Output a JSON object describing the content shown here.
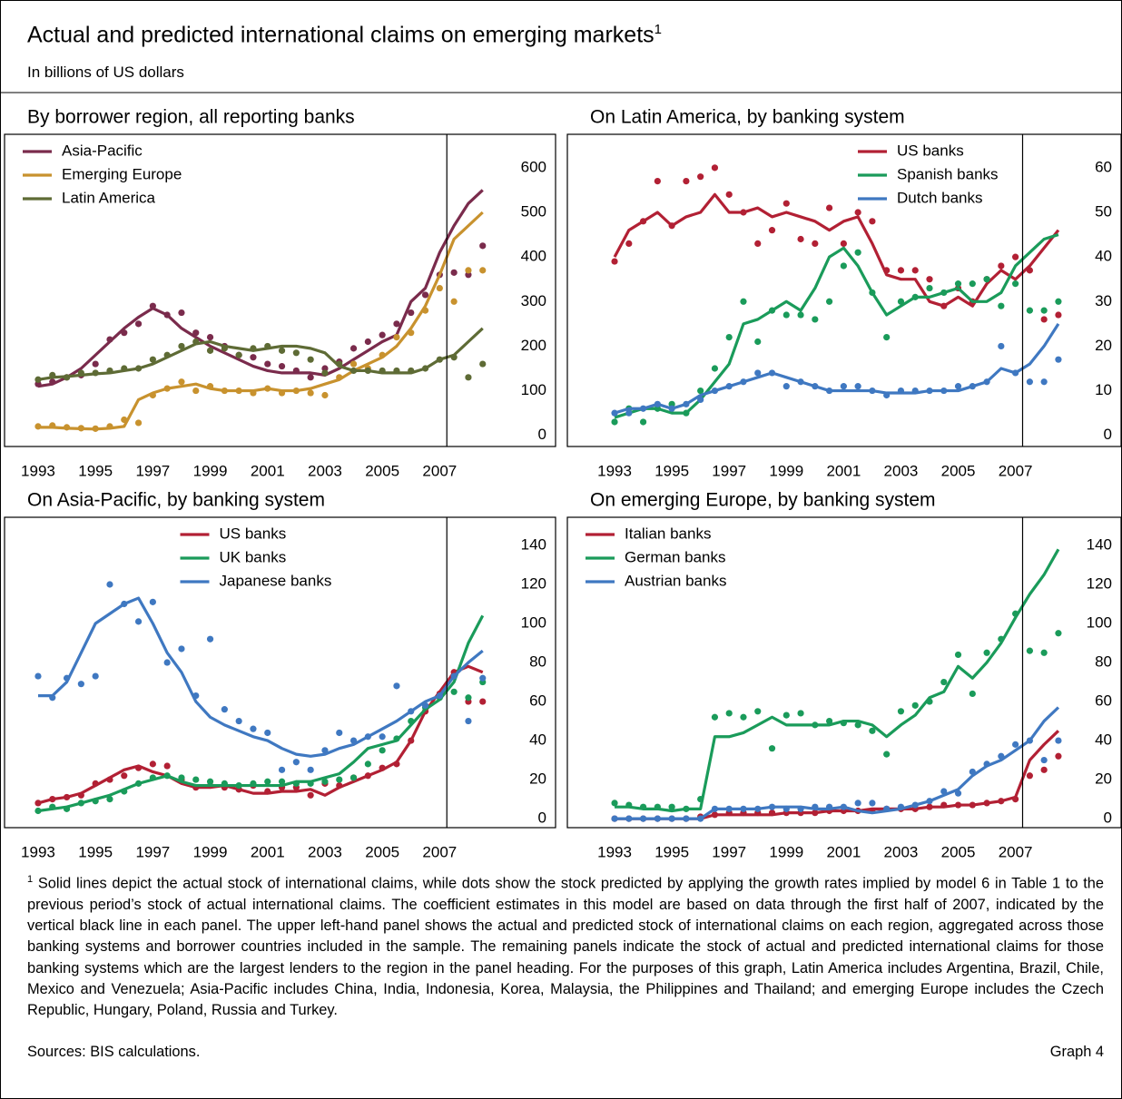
{
  "title": "Actual and predicted international claims on emerging markets",
  "title_note": "1",
  "subtitle": "In billions of US dollars",
  "chart_data": [
    {
      "type": "line",
      "title": "By borrower region, all reporting banks",
      "legend": "upper left",
      "xlim": [
        1991.83,
        2011.04
      ],
      "xticks": [
        1993,
        1995,
        1997,
        1999,
        2001,
        2003,
        2005,
        2007
      ],
      "ylim": [
        -25,
        675
      ],
      "yticks": [
        0,
        100,
        200,
        300,
        400,
        500,
        600
      ],
      "vline": 2007.25,
      "x": [
        1993,
        1993.5,
        1994,
        1994.5,
        1995,
        1995.5,
        1996,
        1996.5,
        1997,
        1997.5,
        1998,
        1998.5,
        1999,
        1999.5,
        2000,
        2000.5,
        2001,
        2001.5,
        2002,
        2002.5,
        2003,
        2003.5,
        2004,
        2004.5,
        2005,
        2005.5,
        2006,
        2006.5,
        2007,
        2007.5,
        2008,
        2008.5
      ],
      "series": [
        {
          "name": "Asia-Pacific",
          "color": "#7a2b4c",
          "values": [
            110,
            115,
            130,
            150,
            180,
            210,
            240,
            265,
            285,
            270,
            240,
            220,
            200,
            185,
            170,
            155,
            145,
            140,
            140,
            140,
            135,
            150,
            170,
            190,
            210,
            225,
            300,
            330,
            410,
            470,
            520,
            550
          ],
          "predicted": [
            115,
            120,
            130,
            135,
            160,
            215,
            230,
            250,
            290,
            270,
            275,
            230,
            220,
            200,
            180,
            175,
            160,
            155,
            145,
            130,
            150,
            165,
            195,
            210,
            225,
            250,
            275,
            315,
            360,
            365,
            360,
            425
          ]
        },
        {
          "name": "Emerging Europe",
          "color": "#c8922e",
          "values": [
            18,
            18,
            16,
            15,
            14,
            16,
            20,
            80,
            95,
            105,
            110,
            115,
            105,
            100,
            100,
            100,
            105,
            100,
            100,
            105,
            115,
            125,
            145,
            160,
            175,
            200,
            240,
            290,
            360,
            440,
            470,
            500
          ],
          "predicted": [
            20,
            22,
            18,
            16,
            15,
            20,
            35,
            28,
            90,
            105,
            120,
            100,
            110,
            100,
            100,
            95,
            105,
            95,
            100,
            95,
            90,
            130,
            160,
            150,
            180,
            220,
            230,
            280,
            330,
            300,
            370,
            370
          ]
        },
        {
          "name": "Latin America",
          "color": "#5e6b35",
          "values": [
            125,
            130,
            132,
            135,
            138,
            140,
            145,
            150,
            160,
            175,
            190,
            205,
            210,
            200,
            195,
            190,
            195,
            200,
            200,
            195,
            185,
            155,
            145,
            145,
            140,
            140,
            140,
            150,
            170,
            180,
            210,
            240
          ],
          "predicted": [
            125,
            135,
            130,
            140,
            140,
            145,
            150,
            150,
            170,
            180,
            200,
            210,
            190,
            195,
            180,
            195,
            200,
            190,
            185,
            170,
            140,
            160,
            145,
            145,
            145,
            145,
            145,
            150,
            170,
            175,
            130,
            160
          ]
        }
      ]
    },
    {
      "type": "line",
      "title": "On Latin America, by banking system",
      "legend": "upper right",
      "xlim": [
        1991.35,
        2010.69
      ],
      "xticks": [
        1993,
        1995,
        1997,
        1999,
        2001,
        2003,
        2005,
        2007
      ],
      "ylim": [
        -2.5,
        67.5
      ],
      "yticks": [
        0,
        10,
        20,
        30,
        40,
        50,
        60
      ],
      "vline": 2007.25,
      "x": [
        1993,
        1993.5,
        1994,
        1994.5,
        1995,
        1995.5,
        1996,
        1996.5,
        1997,
        1997.5,
        1998,
        1998.5,
        1999,
        1999.5,
        2000,
        2000.5,
        2001,
        2001.5,
        2002,
        2002.5,
        2003,
        2003.5,
        2004,
        2004.5,
        2005,
        2005.5,
        2006,
        2006.5,
        2007,
        2007.5,
        2008,
        2008.5
      ],
      "series": [
        {
          "name": "US banks",
          "color": "#b22034",
          "values": [
            40,
            46,
            48,
            50,
            47,
            49,
            50,
            54,
            50,
            50,
            51,
            49,
            50,
            49,
            48,
            46,
            48,
            49,
            43,
            36,
            35,
            35,
            30,
            29,
            31,
            29,
            34,
            37,
            35,
            38,
            42,
            46
          ],
          "predicted": [
            39,
            43,
            48,
            57,
            47,
            57,
            58,
            60,
            54,
            50,
            43,
            46,
            52,
            44,
            43,
            51,
            43,
            50,
            48,
            37,
            37,
            37,
            35,
            29,
            33,
            30,
            35,
            38,
            40,
            37,
            26,
            27
          ]
        },
        {
          "name": "Spanish banks",
          "color": "#1a9b5a",
          "values": [
            4,
            5,
            6,
            6,
            5,
            5,
            8,
            12,
            16,
            25,
            26,
            28,
            30,
            28,
            33,
            40,
            42,
            38,
            32,
            27,
            29,
            31,
            31,
            32,
            33,
            30,
            30,
            32,
            38,
            41,
            44,
            45
          ],
          "predicted": [
            3,
            6,
            3,
            6,
            7,
            5,
            10,
            15,
            22,
            30,
            21,
            28,
            27,
            27,
            26,
            30,
            38,
            41,
            32,
            22,
            30,
            31,
            33,
            32,
            34,
            34,
            35,
            29,
            34,
            28,
            28,
            30
          ]
        },
        {
          "name": "Dutch banks",
          "color": "#3f78c1",
          "values": [
            5,
            6,
            6,
            7,
            6,
            7,
            9,
            10,
            11,
            12,
            13,
            14,
            13,
            12,
            11,
            10,
            10,
            10,
            10,
            9.5,
            9.5,
            9.5,
            10,
            10,
            10,
            11,
            12,
            15,
            14,
            16,
            20,
            25
          ],
          "predicted": [
            5,
            5,
            6,
            7,
            6,
            7,
            8,
            10,
            11,
            12,
            14,
            14,
            11,
            12,
            11,
            10,
            11,
            11,
            10,
            9,
            10,
            10,
            10,
            10,
            11,
            11,
            12,
            20,
            14,
            12,
            12,
            17
          ]
        }
      ]
    },
    {
      "type": "line",
      "title": "On Asia-Pacific, by banking system",
      "legend": "upper center",
      "xlim": [
        1991.83,
        2011.04
      ],
      "xticks": [
        1993,
        1995,
        1997,
        1999,
        2001,
        2003,
        2005,
        2007
      ],
      "ylim": [
        -4.6,
        154.4
      ],
      "yticks": [
        0,
        20,
        40,
        60,
        80,
        100,
        120,
        140
      ],
      "vline": 2007.25,
      "x": [
        1993,
        1993.5,
        1994,
        1994.5,
        1995,
        1995.5,
        1996,
        1996.5,
        1997,
        1997.5,
        1998,
        1998.5,
        1999,
        1999.5,
        2000,
        2000.5,
        2001,
        2001.5,
        2002,
        2002.5,
        2003,
        2003.5,
        2004,
        2004.5,
        2005,
        2005.5,
        2006,
        2006.5,
        2007,
        2007.5,
        2008,
        2008.5
      ],
      "series": [
        {
          "name": "US banks",
          "color": "#b22034",
          "values": [
            8,
            10,
            11,
            13,
            17,
            21,
            25,
            27,
            24,
            22,
            18,
            16,
            16,
            17,
            15,
            13,
            13,
            14,
            14,
            15,
            12,
            16,
            19,
            22,
            25,
            29,
            40,
            55,
            65,
            75,
            78,
            75
          ],
          "predicted": [
            8,
            10,
            11,
            12,
            18,
            20,
            22,
            26,
            28,
            27,
            20,
            16,
            17,
            16,
            15,
            17,
            14,
            16,
            16,
            12,
            18,
            17,
            21,
            22,
            26,
            28,
            40,
            55,
            64,
            75,
            60,
            60
          ]
        },
        {
          "name": "UK banks",
          "color": "#1a9b5a",
          "values": [
            4,
            5,
            6,
            8,
            10,
            12,
            15,
            18,
            20,
            22,
            19,
            17,
            17,
            17,
            17,
            17,
            17,
            17,
            19,
            19,
            21,
            23,
            29,
            36,
            38,
            40,
            48,
            56,
            61,
            70,
            90,
            104
          ],
          "predicted": [
            4,
            6,
            5,
            8,
            9,
            10,
            14,
            18,
            21,
            22,
            21,
            20,
            19,
            18,
            17,
            18,
            19,
            19,
            18,
            18,
            19,
            20,
            21,
            28,
            35,
            41,
            50,
            57,
            62,
            65,
            62,
            70
          ]
        },
        {
          "name": "Japanese banks",
          "color": "#3f78c1",
          "values": [
            63,
            63,
            70,
            85,
            100,
            105,
            110,
            113,
            100,
            85,
            75,
            60,
            52,
            48,
            45,
            42,
            40,
            36,
            33,
            32,
            33,
            36,
            38,
            42,
            46,
            50,
            55,
            60,
            63,
            73,
            80,
            86
          ],
          "predicted": [
            73,
            62,
            72,
            69,
            73,
            120,
            110,
            101,
            111,
            80,
            87,
            63,
            92,
            56,
            50,
            46,
            44,
            25,
            29,
            25,
            35,
            44,
            40,
            42,
            42,
            68,
            55,
            58,
            63,
            73,
            50,
            72
          ]
        }
      ]
    },
    {
      "type": "line",
      "title": "On emerging Europe, by banking system",
      "legend": "upper left",
      "xlim": [
        1991.35,
        2010.69
      ],
      "xticks": [
        1993,
        1995,
        1997,
        1999,
        2001,
        2003,
        2005,
        2007
      ],
      "ylim": [
        -4.6,
        154.4
      ],
      "yticks": [
        0,
        20,
        40,
        60,
        80,
        100,
        120,
        140
      ],
      "vline": 2007.25,
      "x": [
        1993,
        1993.5,
        1994,
        1994.5,
        1995,
        1995.5,
        1996,
        1996.5,
        1997,
        1997.5,
        1998,
        1998.5,
        1999,
        1999.5,
        2000,
        2000.5,
        2001,
        2001.5,
        2002,
        2002.5,
        2003,
        2003.5,
        2004,
        2004.5,
        2005,
        2005.5,
        2006,
        2006.5,
        2007,
        2007.5,
        2008,
        2008.5
      ],
      "series": [
        {
          "name": "Italian banks",
          "color": "#b22034",
          "values": [
            0,
            0,
            0,
            0,
            0,
            0,
            0,
            2,
            2,
            2,
            2,
            2,
            3,
            3,
            3,
            4,
            4,
            4,
            5,
            5,
            5,
            5,
            6,
            6,
            7,
            7,
            8,
            9,
            11,
            30,
            38,
            45
          ],
          "predicted": [
            0,
            0,
            0,
            0,
            0,
            0,
            1,
            2,
            3,
            3,
            3,
            3,
            3,
            3,
            3,
            4,
            4,
            4,
            4,
            5,
            5,
            5,
            6,
            7,
            7,
            7,
            8,
            9,
            10,
            22,
            25,
            32
          ]
        },
        {
          "name": "German banks",
          "color": "#1a9b5a",
          "values": [
            6,
            6,
            5,
            5,
            4,
            5,
            5,
            42,
            42,
            44,
            48,
            52,
            48,
            48,
            48,
            48,
            50,
            50,
            48,
            42,
            48,
            53,
            62,
            65,
            78,
            72,
            80,
            90,
            103,
            115,
            125,
            138
          ],
          "predicted": [
            8,
            7,
            6,
            6,
            6,
            5,
            10,
            52,
            54,
            52,
            55,
            36,
            53,
            54,
            48,
            50,
            49,
            48,
            45,
            33,
            55,
            58,
            60,
            70,
            84,
            64,
            85,
            92,
            105,
            86,
            85,
            95
          ]
        },
        {
          "name": "Austrian banks",
          "color": "#3f78c1",
          "values": [
            0,
            0,
            0,
            0,
            0,
            0,
            0,
            5,
            5,
            5,
            5,
            6,
            6,
            6,
            5,
            5,
            6,
            4,
            3,
            4,
            5,
            7,
            9,
            12,
            15,
            22,
            27,
            30,
            35,
            40,
            50,
            57
          ],
          "predicted": [
            0,
            0,
            0,
            0,
            0,
            0,
            0,
            5,
            5,
            5,
            5,
            6,
            5,
            5,
            6,
            6,
            6,
            8,
            8,
            5,
            6,
            7,
            9,
            14,
            13,
            24,
            28,
            32,
            38,
            40,
            30,
            40
          ]
        }
      ]
    }
  ],
  "footnote": {
    "marker": "1",
    "text": "Solid lines depict the actual stock of international claims, while dots show the stock predicted by applying the growth rates implied by model 6 in Table 1 to the previous period’s stock of actual international claims. The coefficient estimates in this model are based on data through the first half of 2007, indicated by the vertical black line in each panel. The upper left-hand panel shows the actual and predicted stock of international claims on each region, aggregated across those banking systems and borrower countries included in the sample. The remaining panels indicate the stock of actual and predicted international claims for those banking systems which are the largest lenders to the region in the panel heading. For the purposes of this graph, Latin America includes Argentina, Brazil, Chile, Mexico and Venezuela; Asia-Pacific includes China, India, Indonesia, Korea, Malaysia, the Philippines and Thailand; and emerging Europe includes the Czech Republic, Hungary, Poland, Russia and Turkey."
  },
  "sources": "Sources: BIS calculations.",
  "graph_label": "Graph 4"
}
